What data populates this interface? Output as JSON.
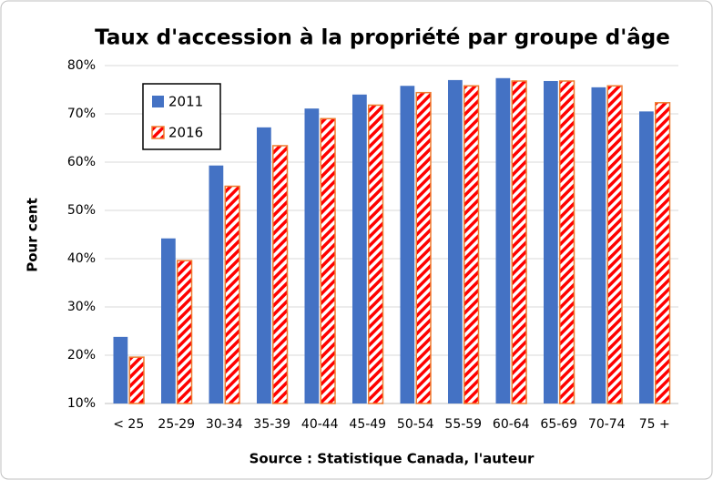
{
  "chart_data": {
    "type": "bar",
    "title": "Taux d'accession à la propriété par groupe d'âge",
    "y_label": "Pour cent",
    "x_label": "Source :  Statistique Canada, l'auteur",
    "categories": [
      "< 25",
      "25-29",
      "30-34",
      "35-39",
      "40-44",
      "45-49",
      "50-54",
      "55-59",
      "60-64",
      "65-69",
      "70-74",
      "75 +"
    ],
    "series": [
      {
        "name": "2011",
        "color": "#4472c4",
        "values": [
          23.8,
          44.2,
          59.3,
          67.2,
          71.1,
          74.0,
          75.8,
          77.0,
          77.4,
          76.8,
          75.5,
          70.5
        ]
      },
      {
        "name": "2016",
        "color": "#ff0000",
        "edge": "#ed7d31",
        "pattern": "hatch",
        "values": [
          19.6,
          39.6,
          55.0,
          63.4,
          69.0,
          71.8,
          74.4,
          75.8,
          76.8,
          76.8,
          75.8,
          72.3
        ]
      }
    ],
    "ylim": [
      10,
      80
    ],
    "yticks": [
      {
        "value": 10,
        "label": "10%"
      },
      {
        "value": 20,
        "label": "20%"
      },
      {
        "value": 30,
        "label": "30%"
      },
      {
        "value": 40,
        "label": "40%"
      },
      {
        "value": 50,
        "label": "50%"
      },
      {
        "value": 60,
        "label": "60%"
      },
      {
        "value": 70,
        "label": "70%"
      },
      {
        "value": 80,
        "label": "80%"
      }
    ],
    "grid": true,
    "legend": "upper left"
  }
}
